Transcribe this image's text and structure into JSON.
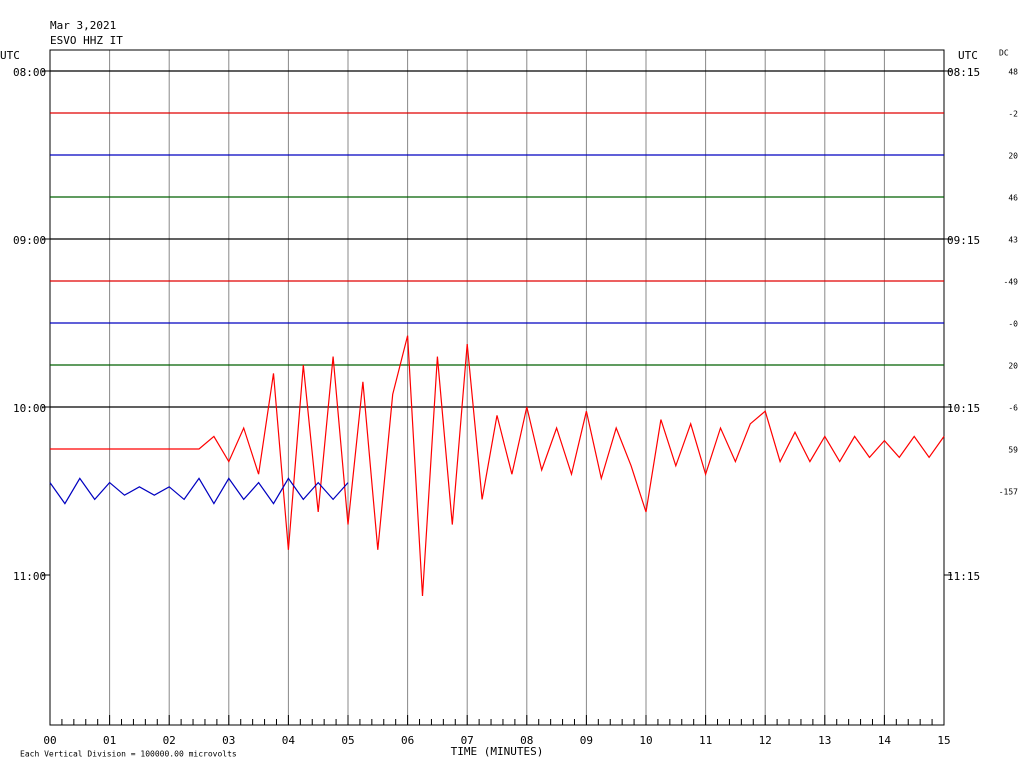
{
  "header": {
    "date": "Mar 3,2021",
    "station": "ESVO HHZ IT",
    "utc_left": "UTC",
    "utc_right": "UTC",
    "dc_title": "DC"
  },
  "time_labels": {
    "left": [
      "08:00",
      "09:00",
      "10:00",
      "11:00"
    ],
    "right": [
      "08:15",
      "09:15",
      "10:15",
      "11:15"
    ]
  },
  "xticks": [
    "00",
    "01",
    "02",
    "03",
    "04",
    "05",
    "06",
    "07",
    "08",
    "09",
    "10",
    "11",
    "12",
    "13",
    "14",
    "15"
  ],
  "xlabel": "TIME (MINUTES)",
  "footer": "Each Vertical Division = 100000.00 microvolts",
  "traces": [
    {
      "color": "#000000",
      "dc": "48",
      "values": [
        0,
        0
      ]
    },
    {
      "color": "#e00000",
      "dc": "-2",
      "values": [
        0,
        0
      ]
    },
    {
      "color": "#0000c0",
      "dc": "20",
      "values": [
        0,
        0
      ]
    },
    {
      "color": "#006000",
      "dc": "46",
      "values": [
        0,
        0
      ]
    },
    {
      "color": "#000000",
      "dc": "43",
      "values": [
        0,
        0
      ]
    },
    {
      "color": "#e00000",
      "dc": "-49",
      "values": [
        0,
        0
      ]
    },
    {
      "color": "#0000c0",
      "dc": "-0",
      "values": [
        0,
        0
      ]
    },
    {
      "color": "#006000",
      "dc": "20",
      "values": [
        0,
        0
      ]
    },
    {
      "color": "#000000",
      "dc": "-6",
      "values": [
        0,
        0
      ]
    },
    {
      "color": "#ff0000",
      "dc": "59",
      "values": [
        0,
        0,
        0,
        0,
        0,
        0,
        0,
        0,
        0,
        0,
        0,
        0.3,
        -0.3,
        0.5,
        -0.6,
        1.8,
        -2.4,
        2.0,
        -1.5,
        2.2,
        -1.8,
        1.6,
        -2.4,
        1.3,
        2.7,
        -3.5,
        2.2,
        -1.8,
        2.5,
        -1.2,
        0.8,
        -0.6,
        1.0,
        -0.5,
        0.5,
        -0.6,
        0.9,
        -0.7,
        0.5,
        -0.4,
        -1.5,
        0.7,
        -0.4,
        0.6,
        -0.6,
        0.5,
        -0.3,
        0.6,
        0.9,
        -0.3,
        0.4,
        -0.3,
        0.3,
        -0.3,
        0.3,
        -0.2,
        0.2,
        -0.2,
        0.3,
        -0.2,
        0.3
      ]
    },
    {
      "color": "#0000c0",
      "dc": "-157",
      "values": [
        0.2,
        -0.3,
        0.3,
        -0.2,
        0.2,
        -0.1,
        0.1,
        -0.1,
        0.1,
        -0.2,
        0.3,
        -0.3,
        0.3,
        -0.2,
        0.2,
        -0.3,
        0.3,
        -0.2,
        0.2,
        -0.2,
        0.2,
        null,
        null,
        null,
        null,
        null,
        null,
        null,
        null,
        null,
        null,
        null,
        null,
        null,
        null,
        null,
        null,
        null,
        null,
        null,
        null,
        null,
        null,
        null,
        null,
        null,
        null,
        null,
        null,
        null,
        null,
        null,
        null,
        null,
        null,
        null,
        null,
        null,
        null,
        null,
        null
      ]
    }
  ]
}
